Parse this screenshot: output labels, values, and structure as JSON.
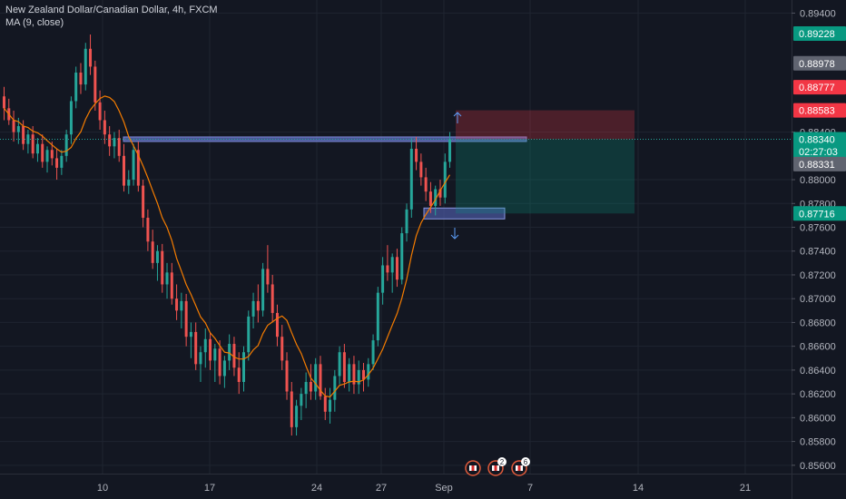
{
  "header": {
    "symbol_title": "New Zealand Dollar/Canadian Dollar, 4h, FXCM",
    "indicator": "MA (9, close)"
  },
  "chart_data": {
    "type": "candlestick",
    "title": "New Zealand Dollar/Canadian Dollar, 4h, FXCM",
    "indicator": "MA (9, close)",
    "y_axis_ticks": [
      "0.89400",
      "0.88400",
      "0.88000",
      "0.87800",
      "0.87600",
      "0.87400",
      "0.87200",
      "0.87000",
      "0.86800",
      "0.86600",
      "0.86400",
      "0.86200",
      "0.86000",
      "0.85800",
      "0.85600"
    ],
    "ylim": [
      0.8553,
      0.8951
    ],
    "x_axis_ticks": [
      "10",
      "17",
      "24",
      "27",
      "Sep",
      "7",
      "14",
      "21"
    ],
    "price_labels": [
      {
        "text": "0.89228",
        "price": 0.89228,
        "color": "#089981"
      },
      {
        "text": "0.88978",
        "price": 0.88978,
        "color": "#606470"
      },
      {
        "text": "0.88777",
        "price": 0.88777,
        "color": "#f23645"
      },
      {
        "text": "0.88583",
        "price": 0.88583,
        "color": "#f23645"
      },
      {
        "text": "0.88340",
        "price": 0.8834,
        "color": "#089981"
      },
      {
        "text": "02:27:03",
        "price": 0.88235,
        "color": "#089981"
      },
      {
        "text": "0.88331",
        "price": 0.88131,
        "color": "#606470"
      },
      {
        "text": "0.87716",
        "price": 0.87716,
        "color": "#089981"
      }
    ],
    "current_price": 0.8834,
    "position_tool": {
      "entry": 0.8834,
      "stop": 0.88583,
      "target": 0.87716
    },
    "ma_period": 9,
    "colors": {
      "up": "#26a69a",
      "down": "#ef5350",
      "ma": "#f57c00",
      "background": "#131722",
      "grid": "#1f2430",
      "axis_text": "#b2b5be"
    },
    "event_badges": [
      "",
      "2",
      "6"
    ],
    "candles": [
      [
        0.887,
        0.8878,
        0.885,
        0.886
      ],
      [
        0.886,
        0.8868,
        0.8846,
        0.885
      ],
      [
        0.885,
        0.8858,
        0.8832,
        0.884
      ],
      [
        0.884,
        0.8852,
        0.883,
        0.8845
      ],
      [
        0.8845,
        0.885,
        0.8825,
        0.883
      ],
      [
        0.883,
        0.8842,
        0.8822,
        0.8838
      ],
      [
        0.8838,
        0.8845,
        0.8818,
        0.8822
      ],
      [
        0.8822,
        0.8835,
        0.8815,
        0.883
      ],
      [
        0.883,
        0.8838,
        0.881,
        0.8815
      ],
      [
        0.8815,
        0.8828,
        0.8806,
        0.8825
      ],
      [
        0.8825,
        0.8832,
        0.8812,
        0.8818
      ],
      [
        0.8818,
        0.8826,
        0.88,
        0.881
      ],
      [
        0.881,
        0.8825,
        0.8804,
        0.882
      ],
      [
        0.882,
        0.8842,
        0.8815,
        0.8838
      ],
      [
        0.8838,
        0.887,
        0.883,
        0.8866
      ],
      [
        0.8866,
        0.8895,
        0.886,
        0.889
      ],
      [
        0.889,
        0.8898,
        0.8872,
        0.888
      ],
      [
        0.888,
        0.8915,
        0.8875,
        0.891
      ],
      [
        0.891,
        0.8922,
        0.8888,
        0.8895
      ],
      [
        0.8895,
        0.89,
        0.8858,
        0.8865
      ],
      [
        0.8865,
        0.8875,
        0.8842,
        0.885
      ],
      [
        0.885,
        0.8858,
        0.883,
        0.8838
      ],
      [
        0.8838,
        0.8845,
        0.882,
        0.8828
      ],
      [
        0.8828,
        0.884,
        0.8818,
        0.8835
      ],
      [
        0.8835,
        0.8842,
        0.8815,
        0.882
      ],
      [
        0.882,
        0.883,
        0.879,
        0.8795
      ],
      [
        0.8795,
        0.8808,
        0.8788,
        0.88
      ],
      [
        0.88,
        0.883,
        0.8795,
        0.8825
      ],
      [
        0.8825,
        0.8832,
        0.879,
        0.8795
      ],
      [
        0.8795,
        0.88,
        0.876,
        0.8768
      ],
      [
        0.8768,
        0.8775,
        0.874,
        0.8748
      ],
      [
        0.8748,
        0.8758,
        0.8725,
        0.873
      ],
      [
        0.873,
        0.8745,
        0.8715,
        0.874
      ],
      [
        0.874,
        0.8746,
        0.8705,
        0.8712
      ],
      [
        0.8712,
        0.873,
        0.87,
        0.8722
      ],
      [
        0.8722,
        0.873,
        0.8695,
        0.87
      ],
      [
        0.87,
        0.8712,
        0.8682,
        0.869
      ],
      [
        0.869,
        0.8705,
        0.8675,
        0.8698
      ],
      [
        0.8698,
        0.8704,
        0.866,
        0.8668
      ],
      [
        0.8668,
        0.868,
        0.865,
        0.8672
      ],
      [
        0.8672,
        0.868,
        0.864,
        0.8645
      ],
      [
        0.8645,
        0.866,
        0.863,
        0.8655
      ],
      [
        0.8655,
        0.8675,
        0.8642,
        0.8666
      ],
      [
        0.8666,
        0.8672,
        0.864,
        0.8648
      ],
      [
        0.8648,
        0.8662,
        0.863,
        0.8658
      ],
      [
        0.8658,
        0.8665,
        0.8628,
        0.8635
      ],
      [
        0.8635,
        0.8652,
        0.8625,
        0.8648
      ],
      [
        0.8648,
        0.867,
        0.864,
        0.8662
      ],
      [
        0.8662,
        0.8668,
        0.8635,
        0.8642
      ],
      [
        0.8642,
        0.8655,
        0.862,
        0.863
      ],
      [
        0.863,
        0.866,
        0.8622,
        0.8655
      ],
      [
        0.8655,
        0.869,
        0.8648,
        0.8685
      ],
      [
        0.8685,
        0.8705,
        0.8675,
        0.8698
      ],
      [
        0.8698,
        0.8712,
        0.868,
        0.869
      ],
      [
        0.869,
        0.873,
        0.8685,
        0.8725
      ],
      [
        0.8725,
        0.8745,
        0.8705,
        0.8712
      ],
      [
        0.8712,
        0.872,
        0.868,
        0.8688
      ],
      [
        0.8688,
        0.8695,
        0.866,
        0.8668
      ],
      [
        0.8668,
        0.8678,
        0.864,
        0.8648
      ],
      [
        0.8648,
        0.8655,
        0.8615,
        0.8622
      ],
      [
        0.8622,
        0.863,
        0.8585,
        0.8592
      ],
      [
        0.8592,
        0.8615,
        0.8585,
        0.861
      ],
      [
        0.861,
        0.8625,
        0.8598,
        0.862
      ],
      [
        0.862,
        0.8638,
        0.8608,
        0.863
      ],
      [
        0.863,
        0.8645,
        0.8615,
        0.8622
      ],
      [
        0.8622,
        0.865,
        0.8615,
        0.8645
      ],
      [
        0.8645,
        0.8652,
        0.8615,
        0.8618
      ],
      [
        0.8618,
        0.8625,
        0.8598,
        0.8605
      ],
      [
        0.8605,
        0.8625,
        0.8595,
        0.8615
      ],
      [
        0.8615,
        0.864,
        0.8605,
        0.8635
      ],
      [
        0.8635,
        0.866,
        0.8628,
        0.8655
      ],
      [
        0.8655,
        0.8662,
        0.8625,
        0.863
      ],
      [
        0.863,
        0.865,
        0.8622,
        0.8645
      ],
      [
        0.8645,
        0.8652,
        0.862,
        0.8628
      ],
      [
        0.8628,
        0.8648,
        0.862,
        0.864
      ],
      [
        0.864,
        0.8646,
        0.8622,
        0.8632
      ],
      [
        0.8632,
        0.865,
        0.8626,
        0.8645
      ],
      [
        0.8645,
        0.867,
        0.864,
        0.8665
      ],
      [
        0.8665,
        0.871,
        0.866,
        0.8705
      ],
      [
        0.8705,
        0.8735,
        0.8695,
        0.8728
      ],
      [
        0.8728,
        0.8745,
        0.8715,
        0.8722
      ],
      [
        0.8722,
        0.8738,
        0.8705,
        0.8735
      ],
      [
        0.8735,
        0.8742,
        0.871,
        0.8716
      ],
      [
        0.8716,
        0.876,
        0.8712,
        0.8755
      ],
      [
        0.8755,
        0.878,
        0.8748,
        0.8775
      ],
      [
        0.8775,
        0.8835,
        0.8768,
        0.8826
      ],
      [
        0.8826,
        0.8836,
        0.8808,
        0.8815
      ],
      [
        0.8815,
        0.8822,
        0.8795,
        0.8802
      ],
      [
        0.8802,
        0.881,
        0.8782,
        0.879
      ],
      [
        0.879,
        0.8798,
        0.8772,
        0.8778
      ],
      [
        0.8778,
        0.8795,
        0.877,
        0.8792
      ],
      [
        0.8792,
        0.88,
        0.8778,
        0.8785
      ],
      [
        0.8785,
        0.8822,
        0.878,
        0.8815
      ],
      [
        0.8815,
        0.884,
        0.881,
        0.8834
      ]
    ]
  }
}
